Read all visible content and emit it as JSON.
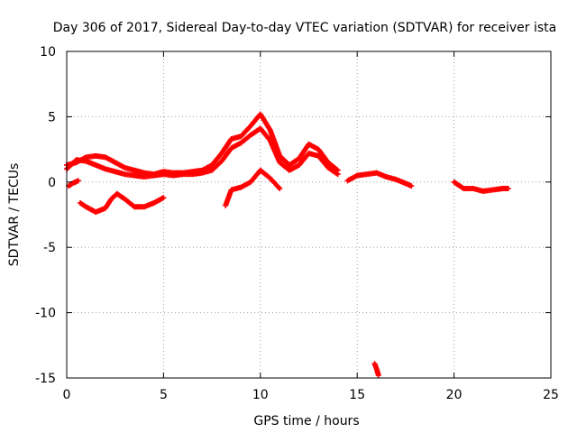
{
  "chart_data": {
    "type": "scatter",
    "title": "Day 306 of 2017, Sidereal Day-to-day VTEC variation (SDTVAR) for receiver ista",
    "xlabel": "GPS time / hours",
    "ylabel": "SDTVAR / TECUs",
    "xlim": [
      0,
      25
    ],
    "ylim": [
      -15,
      10
    ],
    "xticks": [
      0,
      5,
      10,
      15,
      20,
      25
    ],
    "yticks": [
      -15,
      -10,
      -5,
      0,
      5,
      10
    ],
    "x_tick_labels": [
      "0",
      "5",
      "10",
      "15",
      "20",
      "25"
    ],
    "y_tick_labels": [
      "-15",
      "-10",
      "-5",
      "0",
      "5",
      "10"
    ],
    "grid": true,
    "marker": "+",
    "series_color": "#ff0000",
    "series": [
      {
        "name": "track-upper-a",
        "x": [
          0.0,
          0.5,
          1.0,
          1.5,
          2.0,
          2.5,
          3.0,
          3.5,
          4.0,
          4.5,
          5.0,
          5.5,
          6.0,
          6.5,
          7.0,
          7.5,
          8.0,
          8.5,
          9.0,
          9.5,
          10.0,
          10.5,
          11.0,
          11.5,
          12.0,
          12.5,
          13.0,
          13.5,
          14.0
        ],
        "y": [
          1.3,
          1.5,
          1.9,
          2.0,
          1.9,
          1.5,
          1.1,
          0.9,
          0.7,
          0.6,
          0.8,
          0.7,
          0.7,
          0.8,
          0.9,
          1.3,
          2.2,
          3.3,
          3.5,
          4.3,
          5.2,
          4.0,
          2.0,
          1.3,
          1.8,
          2.9,
          2.5,
          1.5,
          0.9
        ]
      },
      {
        "name": "track-upper-b",
        "x": [
          0.0,
          0.5,
          1.0,
          1.5,
          2.0,
          2.5,
          3.0,
          3.5,
          4.0,
          4.5,
          5.0,
          5.5,
          6.0,
          6.5,
          7.0,
          7.5,
          8.0,
          8.5,
          9.0,
          9.5,
          10.0,
          10.5,
          11.0,
          11.5,
          12.0,
          12.5,
          13.0,
          13.5,
          14.0
        ],
        "y": [
          1.0,
          1.7,
          1.6,
          1.3,
          1.0,
          0.8,
          0.6,
          0.5,
          0.4,
          0.5,
          0.6,
          0.5,
          0.6,
          0.6,
          0.7,
          0.9,
          1.6,
          2.6,
          3.0,
          3.6,
          4.1,
          3.2,
          1.5,
          0.9,
          1.3,
          2.2,
          2.0,
          1.1,
          0.6
        ]
      },
      {
        "name": "track-afternoon",
        "x": [
          14.5,
          15.0,
          15.5,
          16.0,
          16.5,
          17.0,
          17.5,
          17.8
        ],
        "y": [
          0.1,
          0.5,
          0.6,
          0.7,
          0.4,
          0.2,
          -0.1,
          -0.3
        ]
      },
      {
        "name": "track-evening",
        "x": [
          20.0,
          20.5,
          21.0,
          21.5,
          22.0,
          22.5,
          22.8
        ],
        "y": [
          0.0,
          -0.5,
          -0.5,
          -0.7,
          -0.6,
          -0.5,
          -0.5
        ]
      },
      {
        "name": "track-lower-morning",
        "x": [
          0.1,
          0.3,
          0.6
        ],
        "y": [
          -0.3,
          -0.1,
          0.1
        ]
      },
      {
        "name": "track-lower-low",
        "x": [
          0.7,
          1.0,
          1.5,
          2.0,
          2.3,
          2.6,
          3.0,
          3.5,
          4.0,
          4.5,
          5.0
        ],
        "y": [
          -1.6,
          -1.9,
          -2.3,
          -2.0,
          -1.3,
          -0.9,
          -1.3,
          -1.9,
          -1.9,
          -1.6,
          -1.2
        ]
      },
      {
        "name": "track-midday-low",
        "x": [
          8.2,
          8.5,
          9.0,
          9.5,
          10.0,
          10.5,
          11.0
        ],
        "y": [
          -1.8,
          -0.6,
          -0.4,
          0.0,
          0.9,
          0.3,
          -0.5
        ]
      },
      {
        "name": "track-outlier",
        "x": [
          15.9,
          16.0,
          16.1
        ],
        "y": [
          -13.9,
          -14.3,
          -14.8
        ]
      }
    ]
  }
}
